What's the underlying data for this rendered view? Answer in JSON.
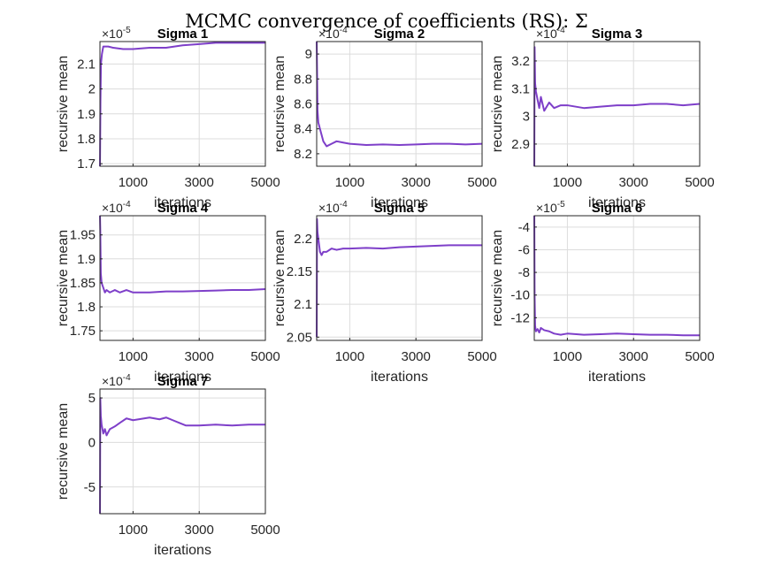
{
  "figure": {
    "title": "MCMC convergence of coefficients (RS): Σ",
    "series_color": "#7e3fc9"
  },
  "chart_data": [
    {
      "type": "line",
      "title": "Sigma 1",
      "xlabel": "iterations",
      "ylabel": "recursive mean",
      "exponent_base": "×10",
      "exponent": "-5",
      "xlim": [
        0,
        5000
      ],
      "ylim": [
        1.69,
        2.19
      ],
      "xticks": [
        1000,
        3000,
        5000
      ],
      "xtick_labels": [
        "1000",
        "3000",
        "5000"
      ],
      "yticks": [
        1.7,
        1.8,
        1.9,
        2.0,
        2.1
      ],
      "ytick_labels": [
        "1.7",
        "1.8",
        "1.9",
        "2",
        "2.1"
      ],
      "grid": true,
      "x": [
        1,
        15,
        30,
        60,
        100,
        160,
        250,
        400,
        700,
        1000,
        1500,
        2000,
        2500,
        3000,
        3500,
        4000,
        4500,
        5000
      ],
      "y": [
        1.69,
        1.95,
        2.1,
        2.14,
        2.17,
        2.17,
        2.17,
        2.165,
        2.16,
        2.16,
        2.165,
        2.165,
        2.175,
        2.18,
        2.185,
        2.185,
        2.185,
        2.185
      ]
    },
    {
      "type": "line",
      "title": "Sigma 2",
      "xlabel": "iterations",
      "ylabel": "recursive mean",
      "exponent_base": "×10",
      "exponent": "-4",
      "xlim": [
        0,
        5000
      ],
      "ylim": [
        8.1,
        9.1
      ],
      "xticks": [
        1000,
        3000,
        5000
      ],
      "xtick_labels": [
        "1000",
        "3000",
        "5000"
      ],
      "yticks": [
        8.2,
        8.4,
        8.6,
        8.8,
        9.0
      ],
      "ytick_labels": [
        "8.2",
        "8.4",
        "8.6",
        "8.8",
        "9"
      ],
      "grid": true,
      "x": [
        1,
        10,
        25,
        50,
        100,
        150,
        200,
        300,
        450,
        600,
        800,
        1000,
        1500,
        2000,
        2500,
        3000,
        3500,
        4000,
        4500,
        5000
      ],
      "y": [
        9.1,
        8.9,
        8.55,
        8.45,
        8.4,
        8.35,
        8.3,
        8.26,
        8.28,
        8.3,
        8.29,
        8.28,
        8.27,
        8.275,
        8.27,
        8.275,
        8.28,
        8.28,
        8.275,
        8.28
      ]
    },
    {
      "type": "line",
      "title": "Sigma 3",
      "xlabel": "iterations",
      "ylabel": "recursive mean",
      "exponent_base": "×10",
      "exponent": "-4",
      "xlim": [
        0,
        5000
      ],
      "ylim": [
        2.82,
        3.27
      ],
      "xticks": [
        1000,
        3000,
        5000
      ],
      "xtick_labels": [
        "1000",
        "3000",
        "5000"
      ],
      "yticks": [
        2.9,
        3.0,
        3.1,
        3.2
      ],
      "ytick_labels": [
        "2.9",
        "3",
        "3.1",
        "3.2"
      ],
      "grid": true,
      "x": [
        1,
        10,
        25,
        50,
        100,
        150,
        200,
        300,
        450,
        600,
        800,
        1000,
        1500,
        2000,
        2500,
        3000,
        3500,
        4000,
        4500,
        5000
      ],
      "y": [
        2.82,
        3.25,
        3.12,
        3.09,
        3.06,
        3.03,
        3.07,
        3.02,
        3.05,
        3.03,
        3.04,
        3.04,
        3.03,
        3.035,
        3.04,
        3.04,
        3.045,
        3.045,
        3.04,
        3.045
      ]
    },
    {
      "type": "line",
      "title": "Sigma 4",
      "xlabel": "iterations",
      "ylabel": "recursive mean",
      "exponent_base": "×10",
      "exponent": "-4",
      "xlim": [
        0,
        5000
      ],
      "ylim": [
        1.73,
        1.99
      ],
      "xticks": [
        1000,
        3000,
        5000
      ],
      "xtick_labels": [
        "1000",
        "3000",
        "5000"
      ],
      "yticks": [
        1.75,
        1.8,
        1.85,
        1.9,
        1.95
      ],
      "ytick_labels": [
        "1.75",
        "1.8",
        "1.85",
        "1.9",
        "1.95"
      ],
      "grid": true,
      "x": [
        1,
        10,
        25,
        50,
        100,
        150,
        200,
        300,
        450,
        600,
        800,
        1000,
        1500,
        2000,
        2500,
        3000,
        3500,
        4000,
        4500,
        5000
      ],
      "y": [
        1.99,
        1.96,
        1.87,
        1.85,
        1.84,
        1.83,
        1.835,
        1.83,
        1.835,
        1.83,
        1.835,
        1.83,
        1.83,
        1.832,
        1.832,
        1.833,
        1.834,
        1.835,
        1.835,
        1.837
      ]
    },
    {
      "type": "line",
      "title": "Sigma 5",
      "xlabel": "iterations",
      "ylabel": "recursive mean",
      "exponent_base": "×10",
      "exponent": "-4",
      "xlim": [
        0,
        5000
      ],
      "ylim": [
        2.045,
        2.235
      ],
      "xticks": [
        1000,
        3000,
        5000
      ],
      "xtick_labels": [
        "1000",
        "3000",
        "5000"
      ],
      "yticks": [
        2.05,
        2.1,
        2.15,
        2.2
      ],
      "ytick_labels": [
        "2.05",
        "2.1",
        "2.15",
        "2.2"
      ],
      "grid": true,
      "x": [
        1,
        10,
        25,
        50,
        100,
        150,
        200,
        300,
        450,
        600,
        800,
        1000,
        1500,
        2000,
        2500,
        3000,
        3500,
        4000,
        4500,
        5000
      ],
      "y": [
        2.05,
        2.23,
        2.21,
        2.2,
        2.18,
        2.175,
        2.18,
        2.18,
        2.185,
        2.183,
        2.185,
        2.185,
        2.186,
        2.185,
        2.187,
        2.188,
        2.189,
        2.19,
        2.19,
        2.19
      ]
    },
    {
      "type": "line",
      "title": "Sigma 6",
      "xlabel": "iterations",
      "ylabel": "recursive mean",
      "exponent_base": "×10",
      "exponent": "-5",
      "xlim": [
        0,
        5000
      ],
      "ylim": [
        -14,
        -3
      ],
      "xticks": [
        1000,
        3000,
        5000
      ],
      "xtick_labels": [
        "1000",
        "3000",
        "5000"
      ],
      "yticks": [
        -12,
        -10,
        -8,
        -6,
        -4
      ],
      "ytick_labels": [
        "-12",
        "-10",
        "-8",
        "-6",
        "-4"
      ],
      "grid": true,
      "x": [
        1,
        10,
        25,
        50,
        100,
        150,
        200,
        300,
        450,
        600,
        800,
        1000,
        1500,
        2000,
        2500,
        3000,
        3500,
        4000,
        4500,
        5000
      ],
      "y": [
        -3,
        -10,
        -12.7,
        -13.2,
        -13.0,
        -13.3,
        -12.9,
        -13.1,
        -13.2,
        -13.4,
        -13.5,
        -13.4,
        -13.5,
        -13.45,
        -13.4,
        -13.45,
        -13.5,
        -13.5,
        -13.55,
        -13.55
      ]
    },
    {
      "type": "line",
      "title": "Sigma 7",
      "xlabel": "iterations",
      "ylabel": "recursive mean",
      "exponent_base": "×10",
      "exponent": "-4",
      "xlim": [
        0,
        5000
      ],
      "ylim": [
        -8,
        6
      ],
      "xticks": [
        1000,
        3000,
        5000
      ],
      "xtick_labels": [
        "1000",
        "3000",
        "5000"
      ],
      "yticks": [
        -5,
        0,
        5
      ],
      "ytick_labels": [
        "-5",
        "0",
        "5"
      ],
      "grid": true,
      "x": [
        1,
        10,
        25,
        50,
        100,
        150,
        200,
        300,
        450,
        600,
        800,
        1000,
        1500,
        1800,
        2000,
        2200,
        2400,
        2600,
        3000,
        3500,
        4000,
        4500,
        5000
      ],
      "y": [
        -8,
        5,
        3,
        2,
        1,
        1.5,
        0.8,
        1.5,
        1.8,
        2.2,
        2.7,
        2.5,
        2.8,
        2.6,
        2.8,
        2.5,
        2.2,
        1.9,
        1.9,
        2.0,
        1.9,
        2.0,
        2.0
      ]
    }
  ]
}
